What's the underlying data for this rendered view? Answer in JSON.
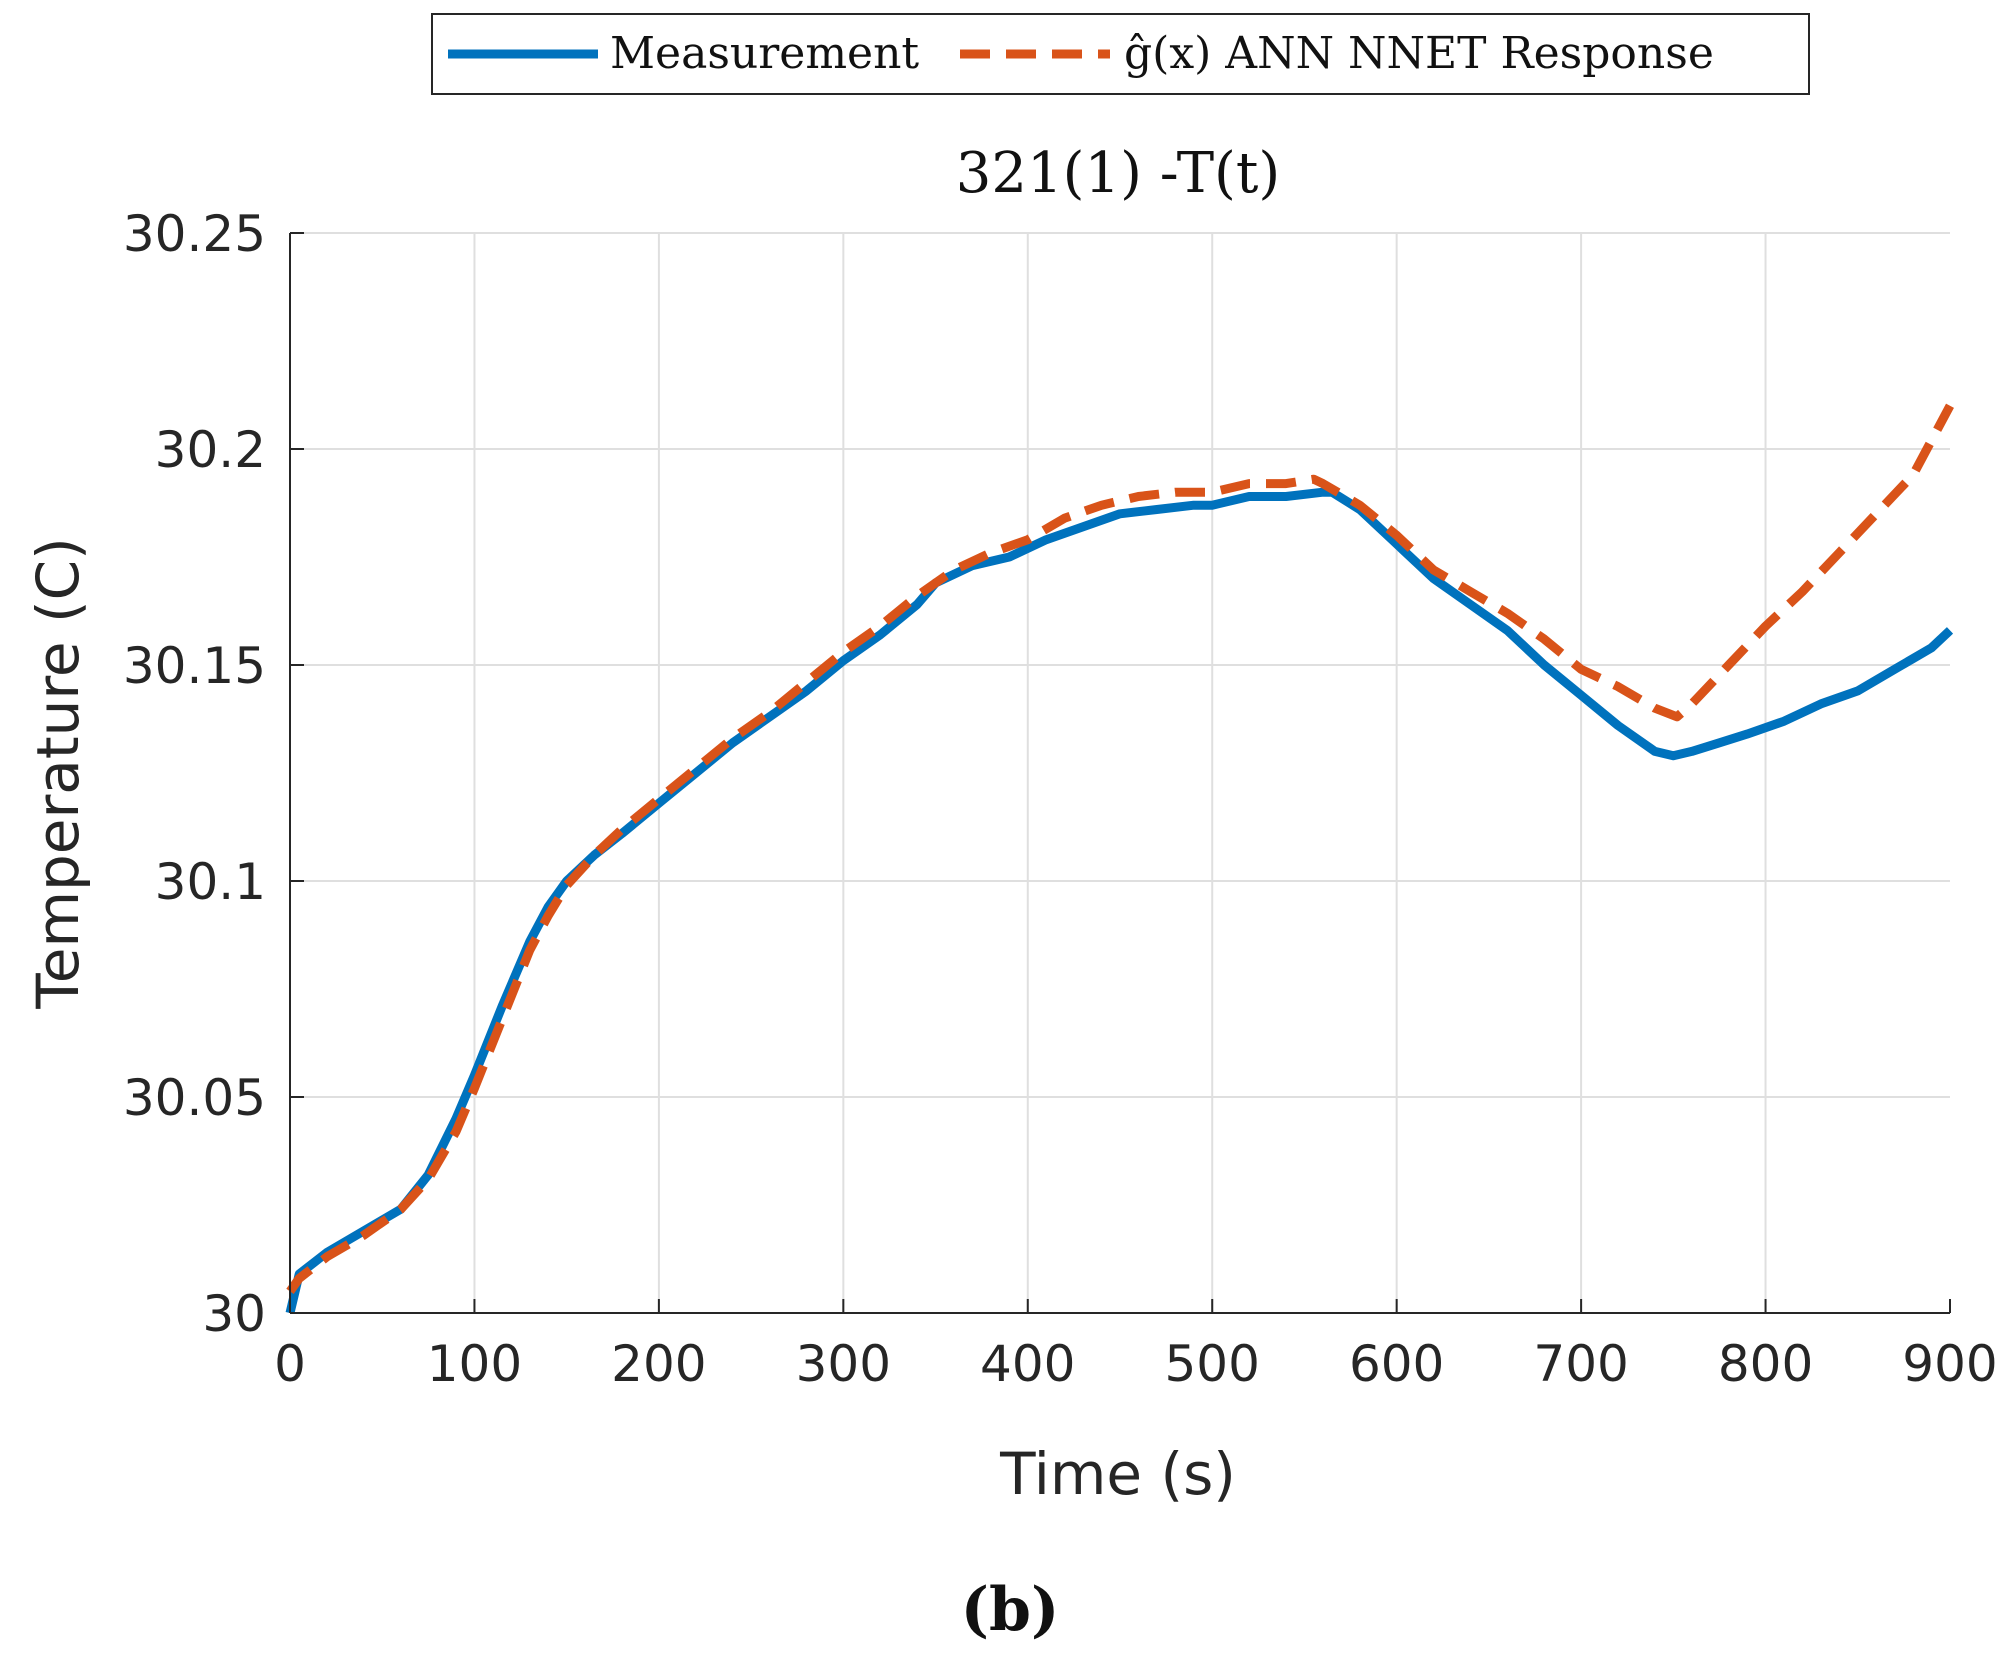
{
  "chart_data": {
    "type": "line",
    "title": "321(1) -T(t)",
    "xlabel": "Time (s)",
    "ylabel": "Temperature (C)",
    "panel_label": "(b)",
    "xlim": [
      0,
      900
    ],
    "ylim": [
      30,
      30.25
    ],
    "xticks": [
      "0",
      "100",
      "200",
      "300",
      "400",
      "500",
      "600",
      "700",
      "800",
      "900"
    ],
    "yticks": [
      "30",
      "30.05",
      "30.1",
      "30.15",
      "30.2",
      "30.25"
    ],
    "grid": true,
    "legend_position": "top",
    "series": [
      {
        "name": "Measurement",
        "color": "#0072bd",
        "style": "solid",
        "x": [
          0,
          5,
          20,
          40,
          60,
          75,
          90,
          100,
          115,
          130,
          140,
          150,
          165,
          180,
          200,
          220,
          240,
          260,
          280,
          300,
          320,
          340,
          350,
          370,
          390,
          410,
          430,
          450,
          470,
          490,
          500,
          520,
          540,
          560,
          565,
          580,
          600,
          620,
          640,
          660,
          680,
          700,
          720,
          740,
          750,
          760,
          775,
          790,
          810,
          830,
          850,
          870,
          890,
          900
        ],
        "values": [
          30.0,
          30.009,
          30.014,
          30.019,
          30.024,
          30.032,
          30.045,
          30.055,
          30.071,
          30.086,
          30.094,
          30.1,
          30.106,
          30.111,
          30.118,
          30.125,
          30.132,
          30.138,
          30.144,
          30.151,
          30.157,
          30.164,
          30.169,
          30.173,
          30.175,
          30.179,
          30.182,
          30.185,
          30.186,
          30.187,
          30.187,
          30.189,
          30.189,
          30.19,
          30.19,
          30.186,
          30.178,
          30.17,
          30.164,
          30.158,
          30.15,
          30.143,
          30.136,
          30.13,
          30.129,
          30.13,
          30.132,
          30.134,
          30.137,
          30.141,
          30.144,
          30.149,
          30.154,
          30.158
        ]
      },
      {
        "name": "ĝ(x) ANN NNET Response",
        "color": "#d95319",
        "style": "dashed",
        "x": [
          0,
          5,
          20,
          40,
          60,
          75,
          90,
          100,
          115,
          130,
          140,
          150,
          165,
          180,
          200,
          220,
          240,
          260,
          280,
          300,
          320,
          340,
          360,
          380,
          400,
          420,
          440,
          460,
          480,
          500,
          520,
          540,
          555,
          560,
          580,
          600,
          620,
          640,
          660,
          680,
          700,
          720,
          740,
          752,
          760,
          780,
          800,
          820,
          840,
          860,
          880,
          900
        ],
        "values": [
          30.005,
          30.008,
          30.013,
          30.018,
          30.024,
          30.031,
          30.042,
          30.052,
          30.068,
          30.084,
          30.092,
          30.099,
          30.106,
          30.112,
          30.119,
          30.126,
          30.133,
          30.139,
          30.146,
          30.153,
          30.159,
          30.166,
          30.172,
          30.176,
          30.179,
          30.184,
          30.187,
          30.189,
          30.19,
          30.19,
          30.192,
          30.192,
          30.193,
          30.192,
          30.187,
          30.18,
          30.172,
          30.167,
          30.162,
          30.156,
          30.149,
          30.145,
          30.14,
          30.138,
          30.141,
          30.15,
          30.159,
          30.167,
          30.176,
          30.185,
          30.194,
          30.21
        ]
      }
    ]
  }
}
